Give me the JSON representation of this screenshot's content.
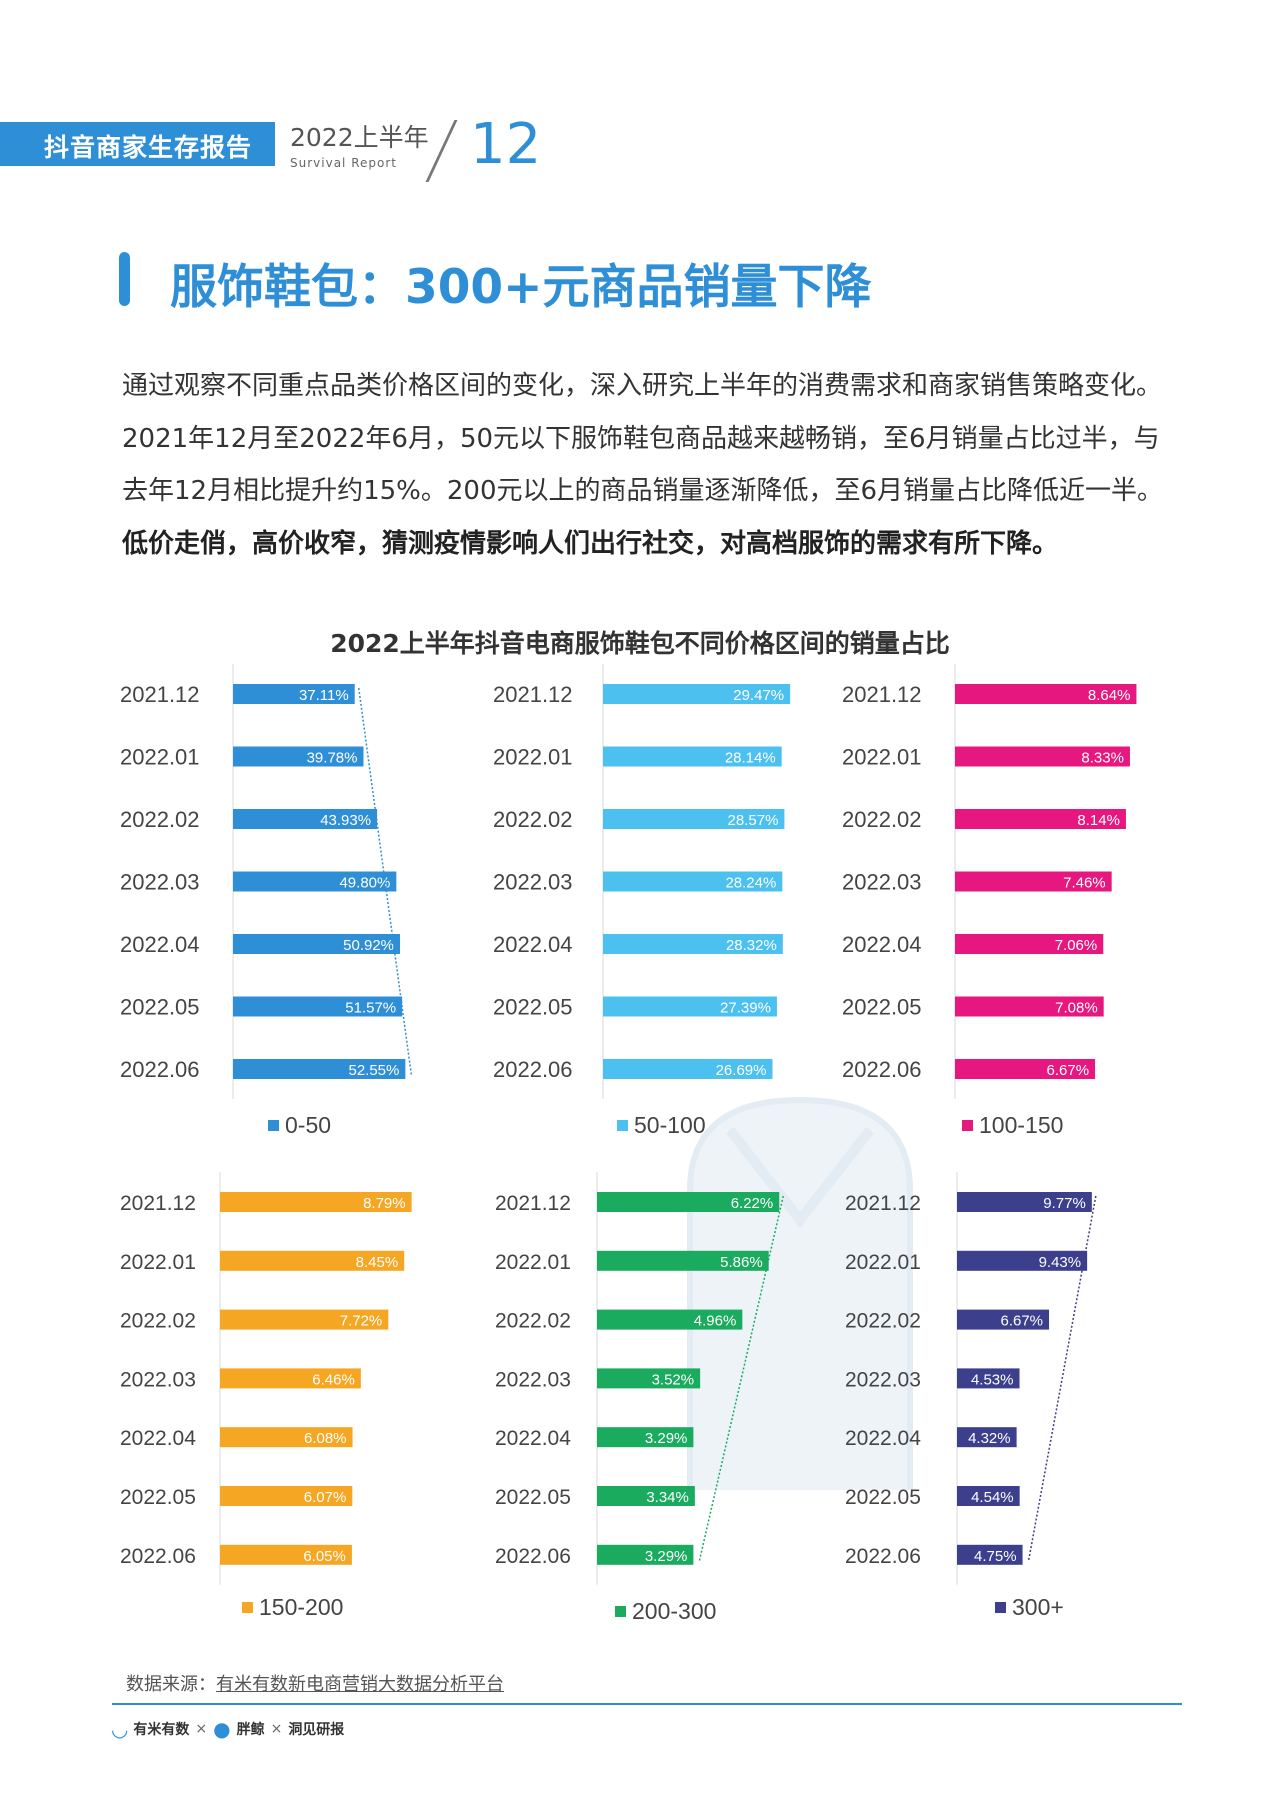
{
  "header": {
    "tab_label": "抖音商家生存报告",
    "year_label": "2022上半年",
    "sub_label": "Survival Report",
    "page_number": "12"
  },
  "title": "服饰鞋包：300+元商品销量下降",
  "paragraph": {
    "normal": "通过观察不同重点品类价格区间的变化，深入研究上半年的消费需求和商家销售策略变化。2021年12月至2022年6月，50元以下服饰鞋包商品越来越畅销，至6月销量占比过半，与去年12月相比提升约15%。200元以上的商品销量逐渐降低，至6月销量占比降低近一半。",
    "bold": "低价走俏，高价收窄，猜测疫情影响人们出行社交，对高档服饰的需求有所下降。"
  },
  "source": {
    "label": "数据来源：",
    "text": "有米有数新电商营销大数据分析平台"
  },
  "footer_logos": {
    "logo1": "有米有数",
    "logo2": "胖鲸",
    "logo3": "洞见研报",
    "sep": "×"
  },
  "chart_data": {
    "type": "bar",
    "title": "2022上半年抖音电商服饰鞋包不同价格区间的销量占比",
    "categories": [
      "2021.12",
      "2022.01",
      "2022.02",
      "2022.03",
      "2022.04",
      "2022.05",
      "2022.06"
    ],
    "series": [
      {
        "name": "0-50",
        "color": "#2f8fd6",
        "labels": [
          "37.11%",
          "39.78%",
          "43.93%",
          "49.80%",
          "50.92%",
          "51.57%",
          "52.55%"
        ],
        "values": [
          37.11,
          39.78,
          43.93,
          49.8,
          50.92,
          51.57,
          52.55
        ]
      },
      {
        "name": "50-100",
        "color": "#4cc1f0",
        "labels": [
          "29.47%",
          "28.14%",
          "28.57%",
          "28.24%",
          "28.32%",
          "27.39%",
          "26.69%"
        ],
        "values": [
          29.47,
          28.14,
          28.57,
          28.24,
          28.32,
          27.39,
          26.69
        ]
      },
      {
        "name": "100-150",
        "color": "#e6177e",
        "labels": [
          "8.64%",
          "8.33%",
          "8.14%",
          "7.46%",
          "7.06%",
          "7.08%",
          "6.67%"
        ],
        "values": [
          8.64,
          8.33,
          8.14,
          7.46,
          7.06,
          7.08,
          6.67
        ]
      },
      {
        "name": "150-200",
        "color": "#f5a623",
        "labels": [
          "8.79%",
          "8.45%",
          "7.72%",
          "6.46%",
          "6.08%",
          "6.07%",
          "6.05%"
        ],
        "values": [
          8.79,
          8.45,
          7.72,
          6.46,
          6.08,
          6.07,
          6.05
        ]
      },
      {
        "name": "200-300",
        "color": "#1aab5f",
        "labels": [
          "6.22%",
          "5.86%",
          "4.96%",
          "3.52%",
          "3.29%",
          "3.34%",
          "3.29%"
        ],
        "values": [
          6.22,
          5.86,
          4.96,
          3.52,
          3.29,
          3.34,
          3.29
        ]
      },
      {
        "name": "300+",
        "color": "#3b3f8c",
        "labels": [
          "9.77%",
          "9.43%",
          "6.67%",
          "4.53%",
          "4.32%",
          "4.54%",
          "4.75%"
        ],
        "values": [
          9.77,
          9.43,
          6.67,
          4.53,
          4.32,
          4.54,
          4.75
        ]
      }
    ],
    "trendlines": [
      true,
      false,
      false,
      false,
      true,
      true
    ]
  }
}
